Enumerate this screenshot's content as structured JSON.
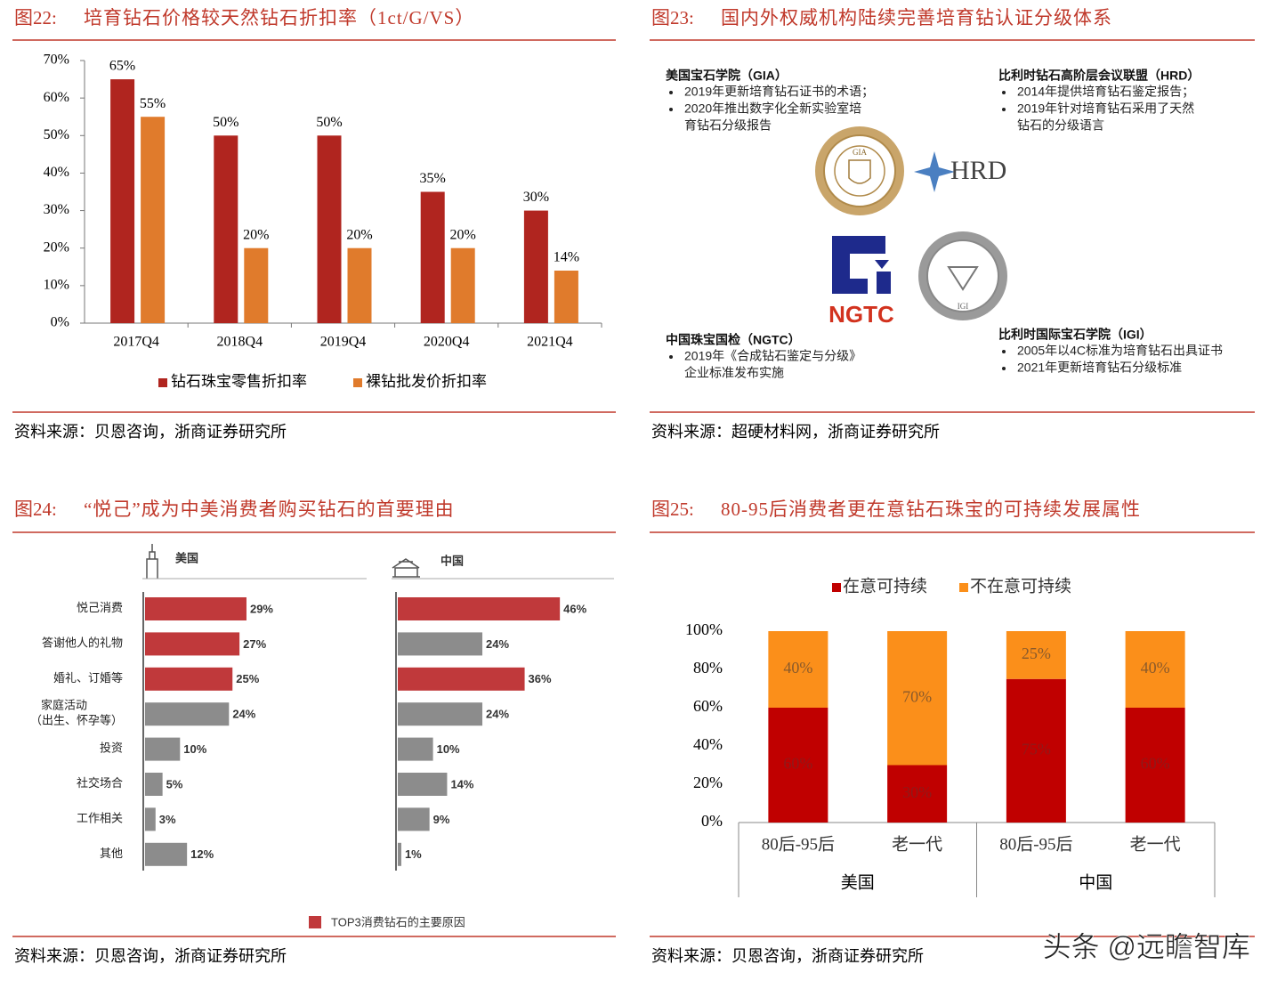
{
  "figures": [
    {
      "label": "图22:",
      "title": "培育钻石价格较天然钻石折扣率（1ct/G/VS）",
      "source": "资料来源：贝恩咨询，浙商证券研究所"
    },
    {
      "label": "图23:",
      "title": "国内外权威机构陆续完善培育钻认证分级体系",
      "source": "资料来源：超硬材料网，浙商证券研究所"
    },
    {
      "label": "图24:",
      "title": "“悦己”成为中美消费者购买钻石的首要理由",
      "source": "资料来源：贝恩咨询，浙商证券研究所"
    },
    {
      "label": "图25:",
      "title": "80-95后消费者更在意钻石珠宝的可持续发展属性",
      "source": "资料来源：贝恩咨询，浙商证券研究所"
    }
  ],
  "chart_data": [
    {
      "type": "bar",
      "categories": [
        "2017Q4",
        "2018Q4",
        "2019Q4",
        "2020Q4",
        "2021Q4"
      ],
      "series": [
        {
          "name": "钻石珠宝零售折扣率",
          "color": "#b0251f",
          "values": [
            65,
            50,
            50,
            35,
            30
          ],
          "value_labels": [
            "65%",
            "50%",
            "50%",
            "35%",
            "30%"
          ]
        },
        {
          "name": "裸钻批发价折扣率",
          "color": "#e07b2c",
          "values": [
            55,
            20,
            20,
            20,
            14
          ],
          "value_labels": [
            "55%",
            "20%",
            "20%",
            "20%",
            "14%"
          ]
        }
      ],
      "ylim": [
        0,
        70
      ],
      "yticks": [
        {
          "value": 0,
          "label": "0%"
        },
        {
          "value": 10,
          "label": "10%"
        },
        {
          "value": 20,
          "label": "20%"
        },
        {
          "value": 30,
          "label": "30%"
        },
        {
          "value": 40,
          "label": "40%"
        },
        {
          "value": 50,
          "label": "50%"
        },
        {
          "value": 60,
          "label": "60%"
        },
        {
          "value": 70,
          "label": "70%"
        }
      ]
    },
    {
      "type": "hbar",
      "title": "美国",
      "categories": [
        "悦己消费",
        "答谢他人的礼物",
        "婚礼、订婚等",
        "家庭活动\n（出生、怀孕等）",
        "投资",
        "社交场合",
        "工作相关",
        "其他"
      ],
      "values": [
        29,
        27,
        25,
        24,
        10,
        5,
        3,
        12
      ],
      "value_labels": [
        "29%",
        "27%",
        "25%",
        "24%",
        "10%",
        "5%",
        "3%",
        "12%"
      ],
      "colors": [
        "#c0393b",
        "#c0393b",
        "#c0393b",
        "#8c8c8c",
        "#8c8c8c",
        "#8c8c8c",
        "#8c8c8c",
        "#8c8c8c"
      ],
      "legend": {
        "name": "TOP3消费钻石的主要原因",
        "color": "#c0393b"
      }
    },
    {
      "type": "hbar",
      "title": "中国",
      "values": [
        46,
        24,
        36,
        24,
        10,
        14,
        9,
        1
      ],
      "value_labels": [
        "46%",
        "24%",
        "36%",
        "24%",
        "10%",
        "14%",
        "9%",
        "1%"
      ],
      "colors": [
        "#c0393b",
        "#8c8c8c",
        "#c0393b",
        "#8c8c8c",
        "#8c8c8c",
        "#8c8c8c",
        "#8c8c8c",
        "#8c8c8c"
      ]
    },
    {
      "type": "stacked_bar",
      "categories": [
        "80后-95后",
        "老一代",
        "80后-95后",
        "老一代"
      ],
      "group_labels": [
        "美国",
        "中国"
      ],
      "series": [
        {
          "name": "在意可持续",
          "color": "#c00000",
          "values": [
            60,
            30,
            75,
            60
          ],
          "value_labels": [
            "60%",
            "30%",
            "75%",
            "60%"
          ]
        },
        {
          "name": "不在意可持续",
          "color": "#fb8f1a",
          "values": [
            40,
            70,
            25,
            40
          ],
          "value_labels": [
            "40%",
            "70%",
            "25%",
            "40%"
          ]
        }
      ],
      "ylim": [
        0,
        100
      ],
      "yticks": [
        {
          "value": 0,
          "label": "0%"
        },
        {
          "value": 20,
          "label": "20%"
        },
        {
          "value": 40,
          "label": "40%"
        },
        {
          "value": 60,
          "label": "60%"
        },
        {
          "value": 80,
          "label": "80%"
        },
        {
          "value": 100,
          "label": "100%"
        }
      ]
    }
  ],
  "diagram": {
    "blocks": [
      {
        "title": "美国宝石学院（GIA）",
        "items": [
          [
            "2019年更新培育钻石证书的术语；"
          ],
          [
            "2020年推出数字化全新实验室培",
            "育钻石分级报告"
          ]
        ]
      },
      {
        "title": "比利时钻石高阶层会议联盟（HRD）",
        "items": [
          [
            "2014年提供培育钻石鉴定报告；"
          ],
          [
            "2019年针对培育钻石采用了天然",
            "钻石的分级语言"
          ]
        ]
      },
      {
        "title": "中国珠宝国检（NGTC）",
        "items": [
          [
            "2019年《合成钻石鉴定与分级》",
            "企业标准发布实施"
          ]
        ]
      },
      {
        "title": "比利时国际宝石学院（IGI）",
        "items": [
          [
            "2005年以4C标准为培育钻石出具证书"
          ],
          [
            "2021年更新培育钻石分级标准"
          ]
        ]
      }
    ],
    "logos": [
      "GIA",
      "HRD",
      "NGTC",
      "IGI"
    ]
  },
  "watermark": "头条 @远瞻智库"
}
